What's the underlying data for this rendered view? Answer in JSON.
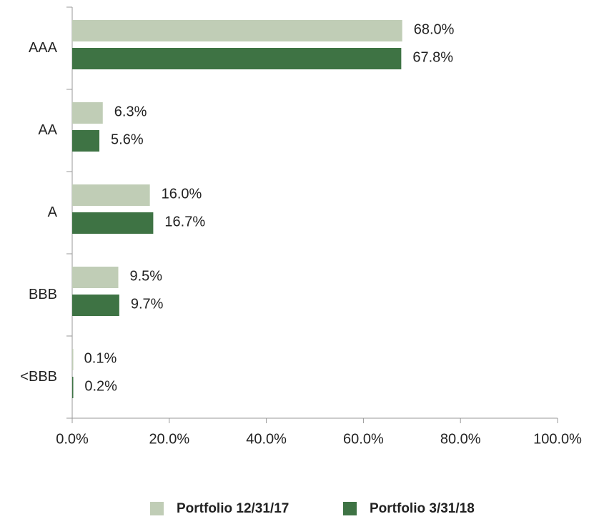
{
  "chart_data": {
    "type": "hbar",
    "categories": [
      "AAA",
      "AA",
      "A",
      "BBB",
      "<BBB"
    ],
    "series": [
      {
        "name": "Portfolio 12/31/17",
        "color": "#c0cdb6",
        "values": [
          68.0,
          6.3,
          16.0,
          9.5,
          0.1
        ],
        "value_labels": [
          "68.0%",
          "6.3%",
          "16.0%",
          "9.5%",
          "0.1%"
        ]
      },
      {
        "name": "Portfolio 3/31/18",
        "color": "#3e7344",
        "values": [
          67.8,
          5.6,
          16.7,
          9.7,
          0.2
        ],
        "value_labels": [
          "67.8%",
          "5.6%",
          "16.7%",
          "9.7%",
          "0.2%"
        ]
      }
    ],
    "xlim": [
      0,
      100
    ],
    "xticks": [
      {
        "value": 0,
        "label": "0.0%"
      },
      {
        "value": 20,
        "label": "20.0%"
      },
      {
        "value": 40,
        "label": "40.0%"
      },
      {
        "value": 60,
        "label": "60.0%"
      },
      {
        "value": 80,
        "label": "80.0%"
      },
      {
        "value": 100,
        "label": "100.0%"
      }
    ],
    "legend": "bottom"
  }
}
